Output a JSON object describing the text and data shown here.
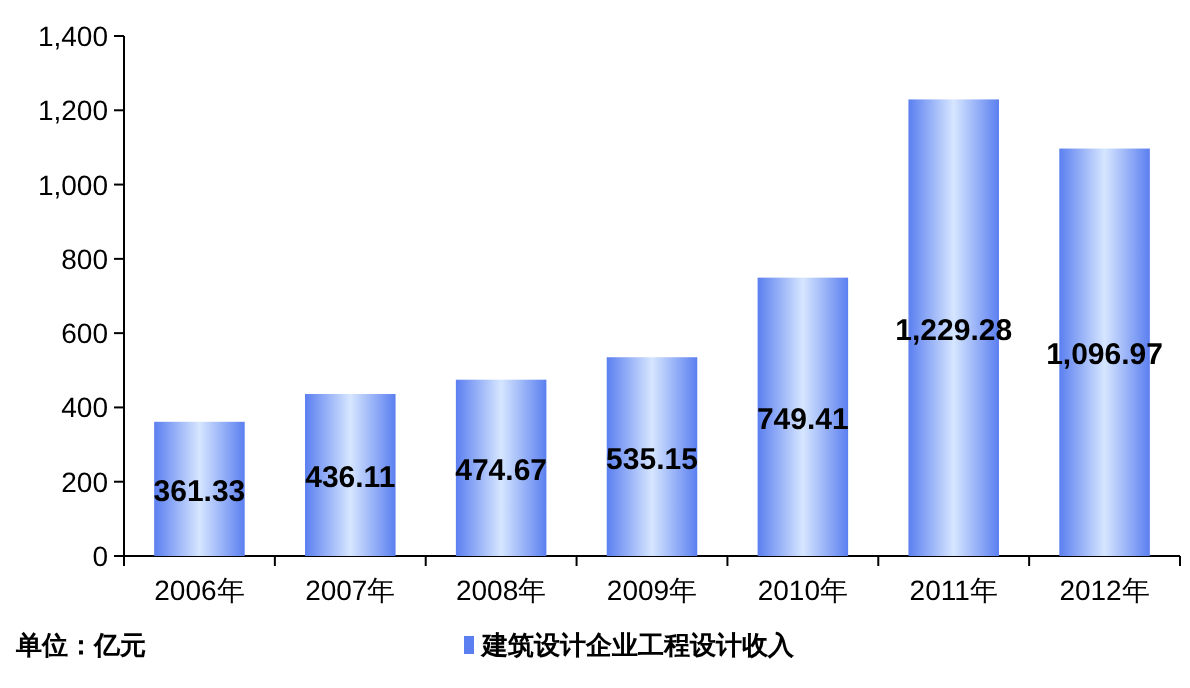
{
  "chart_data": {
    "type": "bar",
    "categories": [
      "2006年",
      "2007年",
      "2008年",
      "2009年",
      "2010年",
      "2011年",
      "2012年"
    ],
    "series": [
      {
        "name": "建筑设计企业工程设计收入",
        "color": "#5b7ff0",
        "values": [
          361.33,
          436.11,
          474.67,
          535.15,
          749.41,
          1229.28,
          1096.97
        ],
        "value_labels": [
          "361.33",
          "436.11",
          "474.67",
          "535.15",
          "749.41",
          "1,229.28",
          "1,096.97"
        ]
      }
    ],
    "ylim": [
      0,
      1400
    ],
    "yticks": [
      0,
      200,
      400,
      600,
      800,
      {
        "value": 1000,
        "label": "1,000"
      },
      {
        "value": 1200,
        "label": "1,200"
      },
      {
        "value": 1400,
        "label": "1,400"
      }
    ],
    "grid": false,
    "legend": "bottom",
    "annotations": [
      "单位：亿元"
    ]
  }
}
